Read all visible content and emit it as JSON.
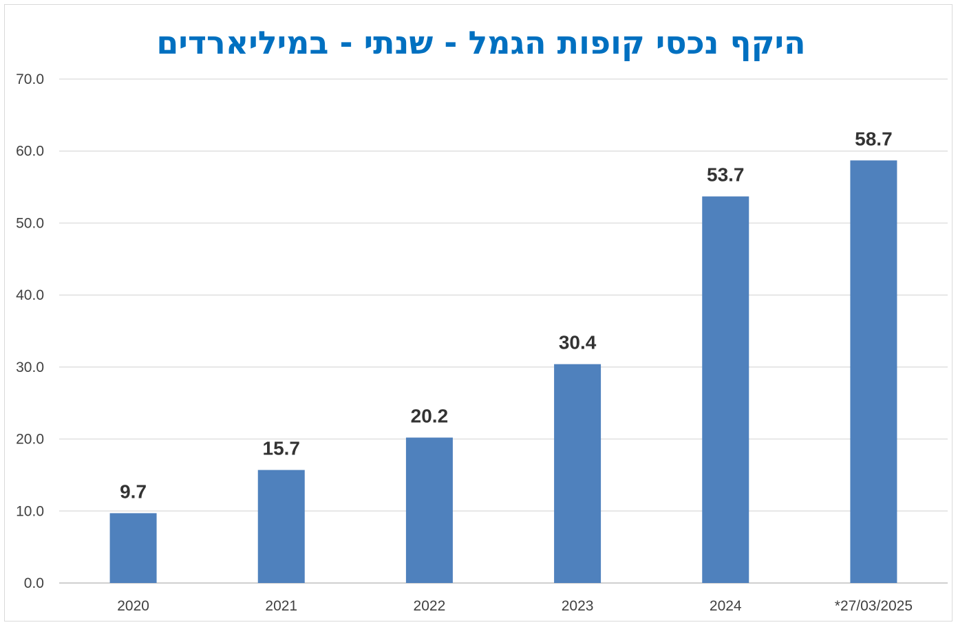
{
  "chart_data": {
    "type": "bar",
    "title": "היקף נכסי קופות הגמל - שנתי - במיליארדים",
    "categories": [
      "2020",
      "2021",
      "2022",
      "2023",
      "2024",
      "*27/03/2025"
    ],
    "values": [
      9.7,
      15.7,
      20.2,
      30.4,
      53.7,
      58.7
    ],
    "value_labels": [
      "9.7",
      "15.7",
      "20.2",
      "30.4",
      "53.7",
      "58.7"
    ],
    "y_ticks": [
      "0.0",
      "10.0",
      "20.0",
      "30.0",
      "40.0",
      "50.0",
      "60.0",
      "70.0"
    ],
    "ylim": [
      0,
      70
    ],
    "xlabel": "",
    "ylabel": "",
    "grid": true,
    "legend": "none",
    "bar_color": "#4f81bd",
    "title_color": "#0070c0"
  }
}
